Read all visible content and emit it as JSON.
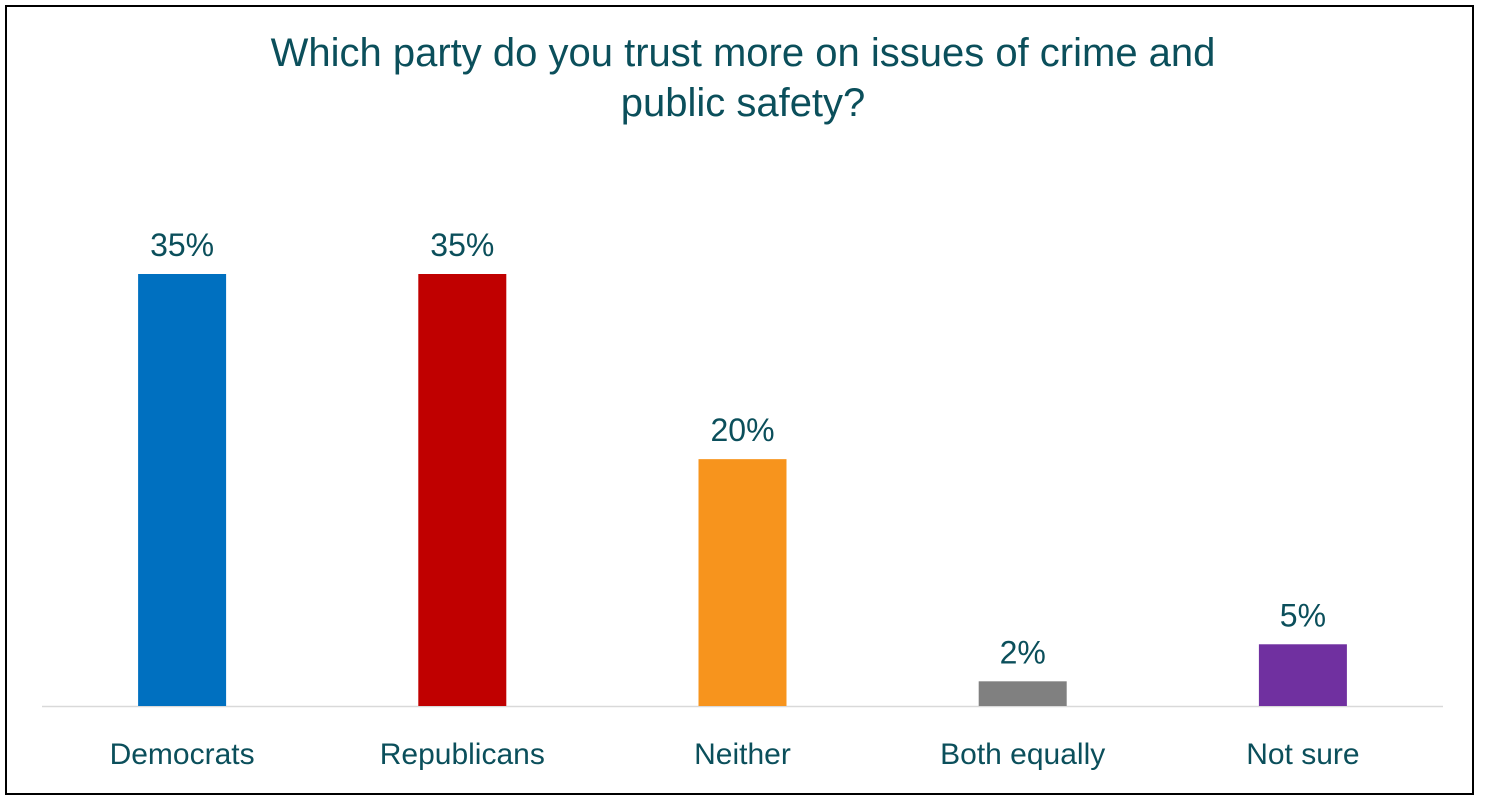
{
  "chart_data": {
    "type": "bar",
    "title_lines": [
      "Which party do you trust more on issues of crime and",
      "public safety?"
    ],
    "categories": [
      "Democrats",
      "Republicans",
      "Neither",
      "Both equally",
      "Not sure"
    ],
    "values": [
      35,
      35,
      20,
      2,
      5
    ],
    "value_labels": [
      "35%",
      "35%",
      "20%",
      "2%",
      "5%"
    ],
    "colors": [
      "#0070c0",
      "#c00000",
      "#f7941d",
      "#808080",
      "#7030a0"
    ],
    "ylim": [
      0,
      35
    ],
    "grid": false,
    "legend": "none",
    "text_color": "#0b4f5b",
    "axis_color": "#d9d9d9"
  }
}
